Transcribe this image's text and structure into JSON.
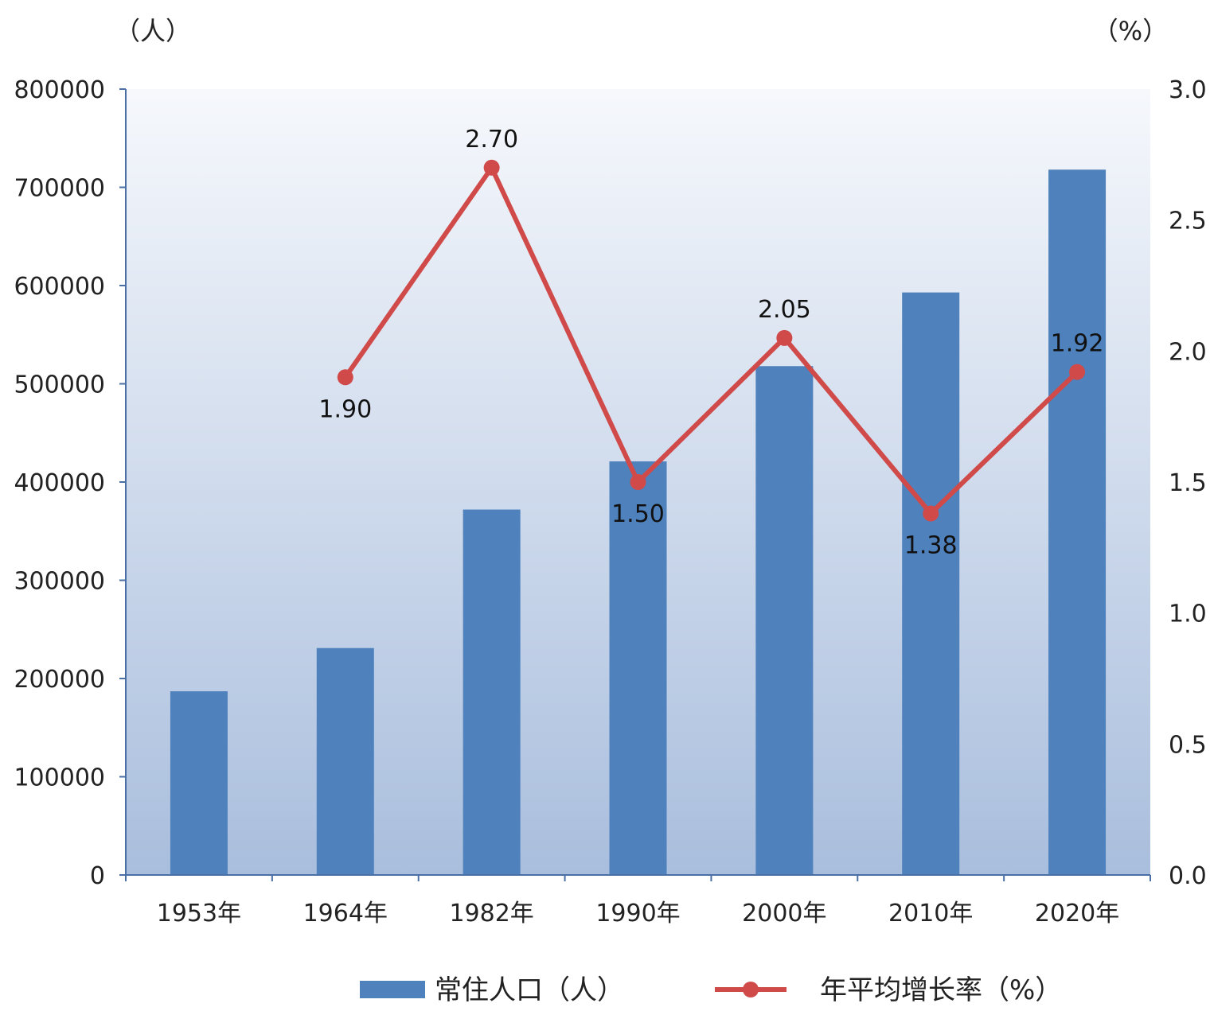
{
  "chart_data": {
    "type": "bar",
    "categories": [
      "1953年",
      "1964年",
      "1982年",
      "1990年",
      "2000年",
      "2010年",
      "2020年"
    ],
    "left_axis_unit": "（人）",
    "right_axis_unit": "（%）",
    "left_axis": {
      "min": 0,
      "max": 800000,
      "ticks": [
        "0",
        "100000",
        "200000",
        "300000",
        "400000",
        "500000",
        "600000",
        "700000",
        "800000"
      ]
    },
    "right_axis": {
      "min": 0,
      "max": 3.0,
      "ticks": [
        "0.0",
        "0.5",
        "1.0",
        "1.5",
        "2.0",
        "2.5",
        "3.0"
      ]
    },
    "series": [
      {
        "name": "常住人口（人）",
        "type": "bar",
        "axis": "left",
        "color": "#4F81BD",
        "values": [
          187000,
          231000,
          372000,
          421000,
          518000,
          593000,
          718000
        ]
      },
      {
        "name": "年平均增长率（%）",
        "type": "line",
        "axis": "right",
        "color": "#D04A4A",
        "values": [
          null,
          1.9,
          2.7,
          1.5,
          2.05,
          1.38,
          1.92
        ],
        "labels": [
          null,
          "1.90",
          "2.70",
          "1.50",
          "2.05",
          "1.38",
          "1.92"
        ],
        "label_pos": [
          null,
          "below",
          "above",
          "below",
          "above",
          "below",
          "above"
        ]
      }
    ],
    "legend_position": "bottom",
    "grid": false,
    "plot_background": "gradient light-blue"
  }
}
